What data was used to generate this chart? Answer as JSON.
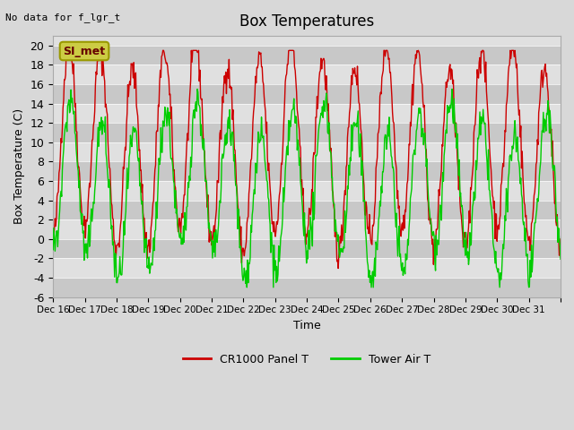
{
  "title": "Box Temperatures",
  "ylabel": "Box Temperature (C)",
  "xlabel": "Time",
  "top_left_text": "No data for f_lgr_t",
  "legend_label": "SI_met",
  "ylim": [
    -6,
    21
  ],
  "yticks": [
    -6,
    -4,
    -2,
    0,
    2,
    4,
    6,
    8,
    10,
    12,
    14,
    16,
    18,
    20
  ],
  "xtick_labels": [
    "Dec 16",
    "Dec 17",
    "Dec 18",
    "Dec 19",
    "Dec 20",
    "Dec 21",
    "Dec 22",
    "Dec 23",
    "Dec 24",
    "Dec 25",
    "Dec 26",
    "Dec 27",
    "Dec 28",
    "Dec 29",
    "Dec 30",
    "Dec 31"
  ],
  "bg_color": "#e8e8e8",
  "plot_bg_color": "#e0e0e0",
  "stripe_color": "#cccccc",
  "line_red": "#cc0000",
  "line_green": "#00cc00",
  "legend_box_color": "#cccc44",
  "series_labels": [
    "CR1000 Panel T",
    "Tower Air T"
  ]
}
